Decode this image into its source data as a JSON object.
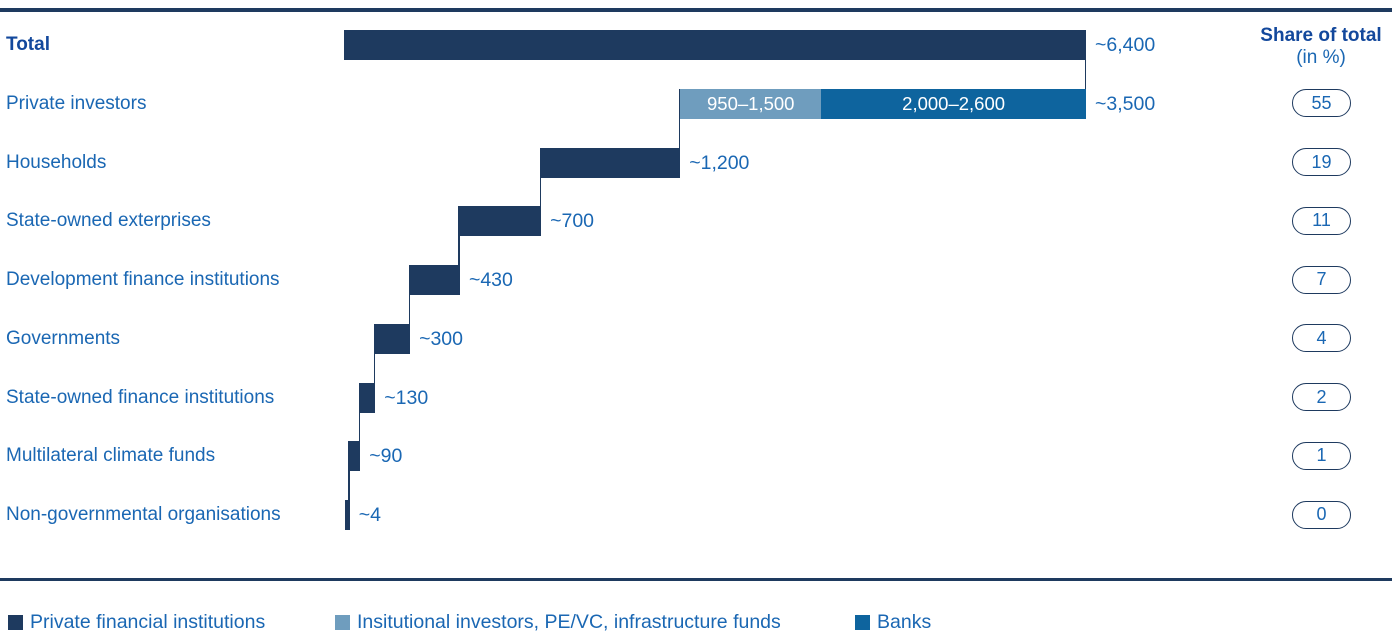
{
  "colors": {
    "navy": "#1e3a5f",
    "light_blue": "#6f9dbe",
    "mid_blue": "#0e649e",
    "text_blue": "#1a67b3",
    "heading_blue": "#13489c",
    "pill_border": "#1e3a5f",
    "background": "#ffffff"
  },
  "share_header": {
    "title": "Share of total",
    "subtitle": "(in %)"
  },
  "chart_data": {
    "type": "bar",
    "orientation": "horizontal",
    "style": "waterfall",
    "anchor": "right",
    "axis_max": 6400,
    "grid": false,
    "legend_position": "bottom",
    "rows": [
      {
        "label": "Total",
        "bold": true,
        "value": 6400,
        "value_label": "~6,400",
        "share": null,
        "segments": [
          {
            "value": 6400,
            "color": "navy",
            "label": ""
          }
        ]
      },
      {
        "label": "Private investors",
        "bold": false,
        "value": 3500,
        "value_label": "~3,500",
        "share": "55",
        "segments": [
          {
            "value": 1225,
            "color": "light_blue",
            "label": "950–1,500"
          },
          {
            "value": 2300,
            "color": "mid_blue",
            "label": "2,000–2,600"
          }
        ]
      },
      {
        "label": "Households",
        "bold": false,
        "value": 1200,
        "value_label": "~1,200",
        "share": "19"
      },
      {
        "label": "State-owned exterprises",
        "bold": false,
        "value": 700,
        "value_label": "~700",
        "share": "11"
      },
      {
        "label": "Development finance institutions",
        "bold": false,
        "value": 430,
        "value_label": "~430",
        "share": "7"
      },
      {
        "label": "Governments",
        "bold": false,
        "value": 300,
        "value_label": "~300",
        "share": "4"
      },
      {
        "label": "State-owned finance institutions",
        "bold": false,
        "value": 130,
        "value_label": "~130",
        "share": "2"
      },
      {
        "label": "Multilateral climate funds",
        "bold": false,
        "value": 90,
        "value_label": "~90",
        "share": "1"
      },
      {
        "label": "Non-governmental organisations",
        "bold": false,
        "value": 4,
        "value_label": "~4",
        "share": "0"
      }
    ],
    "legend": [
      {
        "label": "Private financial institutions",
        "color": "navy"
      },
      {
        "label": "Insitutional investors, PE/VC, infrastructure funds",
        "color": "light_blue"
      },
      {
        "label": "Banks",
        "color": "mid_blue"
      }
    ]
  }
}
